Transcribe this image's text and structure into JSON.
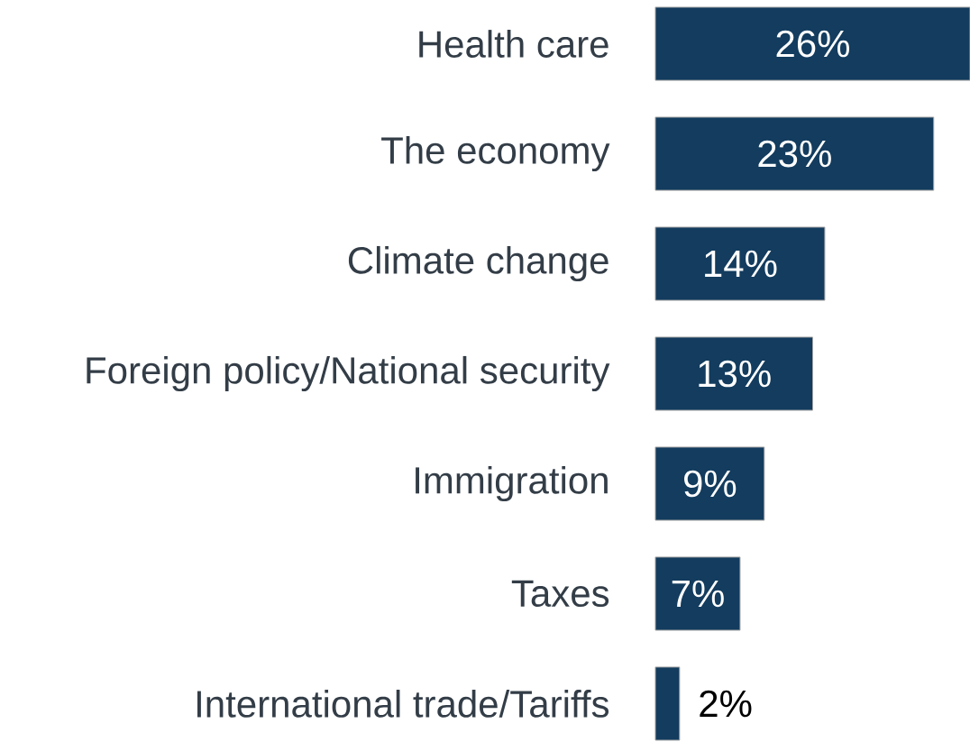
{
  "chart_data": {
    "type": "bar",
    "orientation": "horizontal",
    "categories": [
      "Health care",
      "The economy",
      "Climate change",
      "Foreign policy/National security",
      "Immigration",
      "Taxes",
      "International trade/Tariffs"
    ],
    "values": [
      26,
      23,
      14,
      13,
      9,
      7,
      2
    ],
    "value_labels": [
      "26%",
      "23%",
      "14%",
      "13%",
      "9%",
      "7%",
      "2%"
    ],
    "color": "#133c5e",
    "tick_labels": "y",
    "grid": false
  }
}
